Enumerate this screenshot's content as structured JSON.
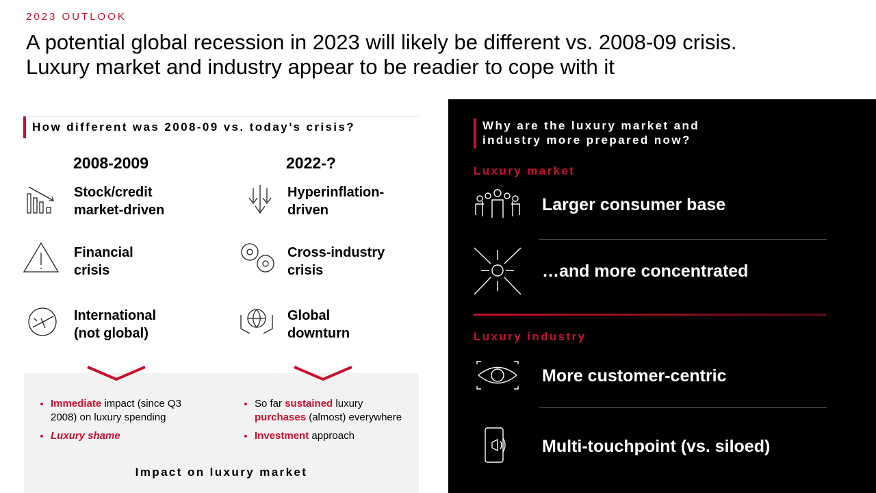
{
  "header": {
    "kicker": "2023 OUTLOOK",
    "title_lines": [
      "A potential global recession in 2023 will likely be different vs. 2008-09 crisis.",
      "Luxury market and industry appear to be readier to cope with it"
    ]
  },
  "comparison": {
    "heading": "How different was 2008-09 vs. today’s crisis?",
    "columns": [
      {
        "title": "2008-2009",
        "items": [
          [
            "Stock/credit",
            "market-driven"
          ],
          [
            "Financial",
            "crisis"
          ],
          [
            "International",
            "(not global)"
          ]
        ],
        "bullets": [
          [
            "Immediate",
            "impact (since Q3 2008) on luxury spending"
          ],
          [
            "Luxury shame"
          ]
        ]
      },
      {
        "title": "2022-?",
        "items": [
          [
            "Hyperinflation-",
            "driven"
          ],
          [
            "Cross-industry",
            "crisis"
          ],
          [
            "Global",
            "downturn"
          ]
        ],
        "bullets": [
          [
            "So far",
            "sustained",
            "luxury",
            "purchases",
            "(almost) everywhere"
          ],
          [
            "Investment",
            "approach"
          ]
        ]
      }
    ],
    "footer": "Impact on luxury market"
  },
  "readiness": {
    "heading_lines": [
      "Why are the luxury market and",
      "industry more prepared now?"
    ],
    "sections": [
      {
        "title": "Luxury market",
        "items": [
          "Larger consumer base",
          "…and more concentrated"
        ]
      },
      {
        "title": "Luxury industry",
        "items": [
          "More customer-centric",
          "Multi-touchpoint (vs. siloed)"
        ]
      }
    ]
  }
}
